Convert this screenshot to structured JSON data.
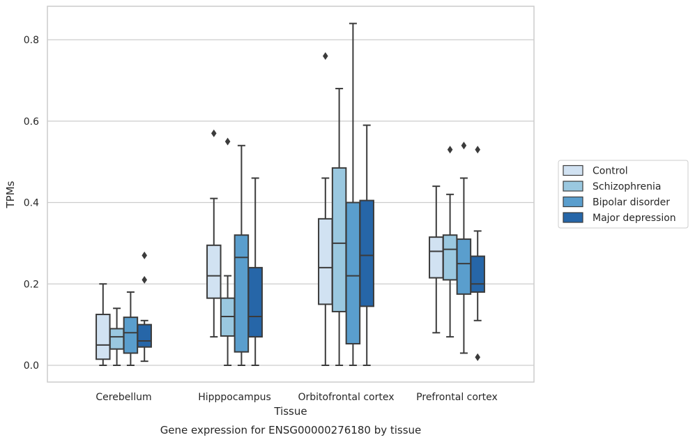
{
  "chart_data": {
    "type": "box",
    "xlabel": "Tissue",
    "ylabel": "TPMs",
    "caption": "Gene expression for ENSG00000276180 by tissue",
    "ylim": [
      -0.04,
      0.885
    ],
    "yticks": [
      "0.0",
      "0.2",
      "0.4",
      "0.6",
      "0.8"
    ],
    "grid": true,
    "legend_position": "right",
    "categories": [
      "Cerebellum",
      "Hipppocampus",
      "Orbitofrontal cortex",
      "Prefrontal cortex"
    ],
    "series": [
      {
        "name": "Control",
        "color": "#d1e2f2",
        "boxes": [
          {
            "whislo": 0.0,
            "q1": 0.015,
            "med": 0.05,
            "q3": 0.125,
            "whishi": 0.2,
            "fliers": []
          },
          {
            "whislo": 0.07,
            "q1": 0.165,
            "med": 0.22,
            "q3": 0.295,
            "whishi": 0.41,
            "fliers": [
              0.57
            ]
          },
          {
            "whislo": 0.0,
            "q1": 0.15,
            "med": 0.24,
            "q3": 0.36,
            "whishi": 0.46,
            "fliers": [
              0.76
            ]
          },
          {
            "whislo": 0.08,
            "q1": 0.215,
            "med": 0.28,
            "q3": 0.315,
            "whishi": 0.44,
            "fliers": []
          }
        ]
      },
      {
        "name": "Schizophrenia",
        "color": "#9ac8e0",
        "boxes": [
          {
            "whislo": 0.0,
            "q1": 0.04,
            "med": 0.07,
            "q3": 0.09,
            "whishi": 0.14,
            "fliers": []
          },
          {
            "whislo": 0.0,
            "q1": 0.072,
            "med": 0.12,
            "q3": 0.165,
            "whishi": 0.22,
            "fliers": [
              0.55
            ]
          },
          {
            "whislo": 0.0,
            "q1": 0.132,
            "med": 0.3,
            "q3": 0.485,
            "whishi": 0.68,
            "fliers": []
          },
          {
            "whislo": 0.07,
            "q1": 0.21,
            "med": 0.285,
            "q3": 0.32,
            "whishi": 0.42,
            "fliers": [
              0.53
            ]
          }
        ]
      },
      {
        "name": "Bipolar disorder",
        "color": "#5a9ecd",
        "boxes": [
          {
            "whislo": 0.0,
            "q1": 0.03,
            "med": 0.08,
            "q3": 0.118,
            "whishi": 0.18,
            "fliers": []
          },
          {
            "whislo": 0.0,
            "q1": 0.033,
            "med": 0.265,
            "q3": 0.32,
            "whishi": 0.54,
            "fliers": []
          },
          {
            "whislo": 0.0,
            "q1": 0.053,
            "med": 0.22,
            "q3": 0.4,
            "whishi": 0.84,
            "fliers": []
          },
          {
            "whislo": 0.03,
            "q1": 0.175,
            "med": 0.25,
            "q3": 0.31,
            "whishi": 0.46,
            "fliers": [
              0.54
            ]
          }
        ]
      },
      {
        "name": "Major depression",
        "color": "#2666a8",
        "boxes": [
          {
            "whislo": 0.01,
            "q1": 0.045,
            "med": 0.06,
            "q3": 0.1,
            "whishi": 0.11,
            "fliers": [
              0.27,
              0.21
            ]
          },
          {
            "whislo": 0.0,
            "q1": 0.07,
            "med": 0.12,
            "q3": 0.24,
            "whishi": 0.46,
            "fliers": []
          },
          {
            "whislo": 0.0,
            "q1": 0.145,
            "med": 0.27,
            "q3": 0.405,
            "whishi": 0.59,
            "fliers": []
          },
          {
            "whislo": 0.11,
            "q1": 0.18,
            "med": 0.2,
            "q3": 0.268,
            "whishi": 0.33,
            "fliers": [
              0.53,
              0.02
            ]
          }
        ]
      }
    ]
  }
}
